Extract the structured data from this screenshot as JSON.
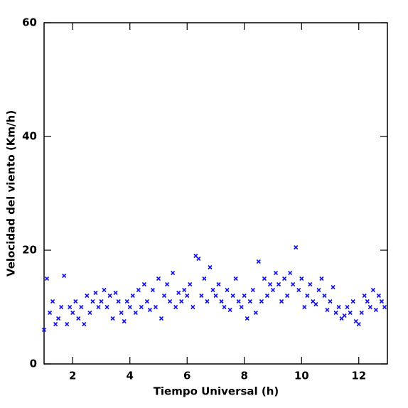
{
  "chart_data": {
    "type": "scatter",
    "x_label": "Tiempo Universal (h)",
    "y_label": "Velocidad del viento (Km/h)",
    "color": "#1010f0",
    "xlim": [
      1,
      13
    ],
    "ylim": [
      0,
      60
    ],
    "xticks": [
      2,
      4,
      6,
      8,
      10,
      12
    ],
    "yticks": [
      0,
      20,
      40,
      60
    ],
    "x": [
      1.0,
      1.1,
      1.2,
      1.3,
      1.4,
      1.5,
      1.6,
      1.7,
      1.8,
      1.9,
      2.0,
      2.1,
      2.2,
      2.3,
      2.4,
      2.5,
      2.6,
      2.7,
      2.8,
      2.9,
      3.0,
      3.1,
      3.2,
      3.3,
      3.4,
      3.5,
      3.6,
      3.7,
      3.8,
      3.9,
      4.0,
      4.1,
      4.2,
      4.3,
      4.4,
      4.5,
      4.6,
      4.7,
      4.8,
      4.9,
      5.0,
      5.1,
      5.2,
      5.3,
      5.4,
      5.5,
      5.6,
      5.7,
      5.8,
      5.9,
      6.0,
      6.1,
      6.2,
      6.3,
      6.4,
      6.5,
      6.6,
      6.7,
      6.8,
      6.9,
      7.0,
      7.1,
      7.2,
      7.3,
      7.4,
      7.5,
      7.6,
      7.7,
      7.8,
      7.9,
      8.0,
      8.1,
      8.2,
      8.3,
      8.4,
      8.5,
      8.6,
      8.7,
      8.8,
      8.9,
      9.0,
      9.1,
      9.2,
      9.3,
      9.4,
      9.5,
      9.6,
      9.7,
      9.8,
      9.9,
      10.0,
      10.1,
      10.2,
      10.3,
      10.4,
      10.5,
      10.6,
      10.7,
      10.8,
      10.9,
      11.0,
      11.1,
      11.2,
      11.3,
      11.4,
      11.5,
      11.6,
      11.7,
      11.8,
      11.9,
      12.0,
      12.1,
      12.2,
      12.3,
      12.4,
      12.5,
      12.6,
      12.7,
      12.8,
      12.9
    ],
    "values": [
      6,
      15,
      9,
      11,
      7,
      8,
      10,
      15.5,
      7,
      10,
      9,
      11,
      8,
      10,
      7,
      12,
      9,
      11,
      12.5,
      10,
      11,
      13,
      10,
      12,
      8,
      12.5,
      11,
      9,
      7.5,
      11,
      10,
      12,
      9,
      13,
      10,
      14,
      11,
      9.5,
      13,
      10,
      15,
      8,
      12,
      14,
      11,
      16,
      10,
      12.5,
      11,
      13,
      12,
      14,
      10,
      19,
      18.5,
      12,
      15,
      11,
      17,
      13,
      12,
      14,
      11,
      10,
      13,
      9.5,
      12,
      15,
      11,
      10,
      12,
      8,
      11,
      13,
      9,
      18,
      11,
      15,
      12,
      14,
      13,
      16,
      14,
      11,
      15,
      12,
      16,
      14,
      20.5,
      13,
      15,
      10,
      12,
      14,
      11,
      10.5,
      13,
      15,
      12,
      9.5,
      11,
      13.5,
      9,
      10,
      8,
      8.5,
      10,
      9,
      11,
      7.5,
      7,
      9,
      12,
      11,
      10,
      13,
      9.5,
      12,
      11,
      10
    ]
  }
}
